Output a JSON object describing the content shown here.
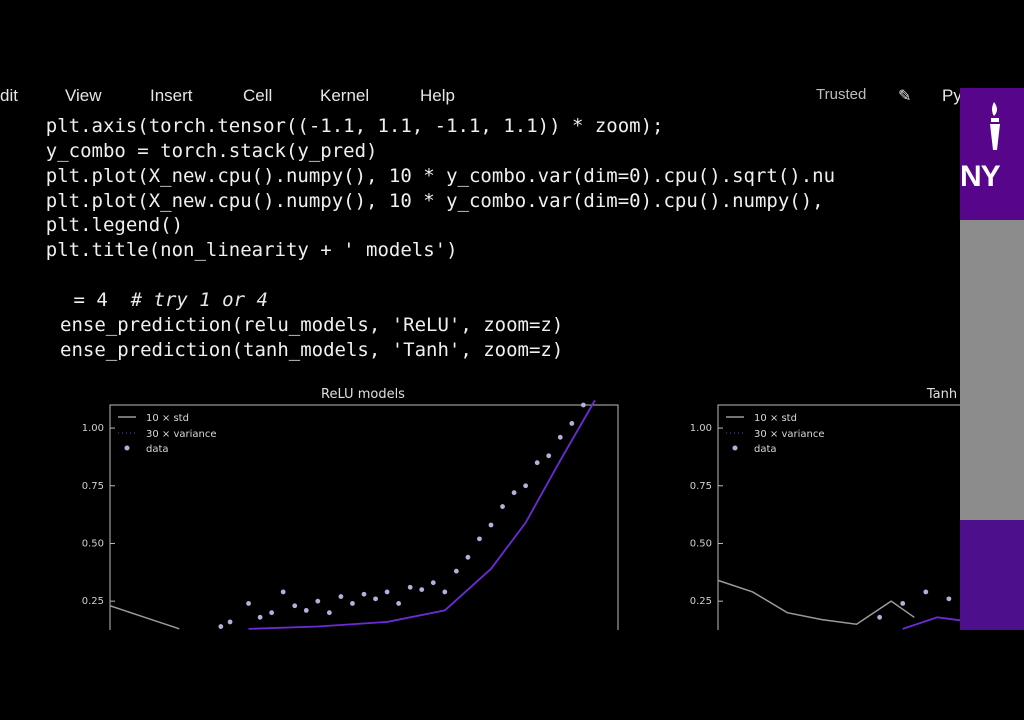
{
  "menubar": {
    "items": [
      "dit",
      "View",
      "Insert",
      "Cell",
      "Kernel",
      "Help"
    ],
    "trusted": "Trusted",
    "kernel_name": "Py"
  },
  "code": {
    "lines": [
      "    plt.axis(torch.tensor((-1.1, 1.1, -1.1, 1.1)) * zoom);",
      "    y_combo = torch.stack(y_pred)",
      "    plt.plot(X_new.cpu().numpy(), 10 * y_combo.var(dim=0).cpu().sqrt().nu",
      "    plt.plot(X_new.cpu().numpy(), 10 * y_combo.var(dim=0).cpu().numpy(),",
      "    plt.legend()",
      "    plt.title(non_linearity + ' models')",
      "",
      " = 4  ",
      "ense_prediction(relu_models, 'ReLU', zoom=z)",
      "ense_prediction(tanh_models, 'Tanh', zoom=z)"
    ],
    "comment": "# try 1 or 4"
  },
  "chart_data": [
    {
      "type": "line",
      "title": "ReLU models",
      "xlabel": "",
      "ylabel": "",
      "ylim": [
        0.2,
        1.1
      ],
      "yticks": [
        "0.25",
        "0.50",
        "0.75",
        "1.00"
      ],
      "legend": [
        "10 × std",
        "30 × variance",
        "data"
      ],
      "legend_position": "top-left",
      "series": [
        {
          "name": "10 × std",
          "color": "#9a9a9a",
          "x": [
            -1.1,
            -0.95,
            -0.8
          ],
          "y": [
            0.23,
            0.18,
            0.13
          ]
        },
        {
          "name": "30 × variance",
          "color": "#6c2bd9",
          "x": [
            -0.5,
            -0.2,
            0.1,
            0.35,
            0.55,
            0.7,
            0.85,
            1.0
          ],
          "y": [
            0.13,
            0.14,
            0.16,
            0.21,
            0.39,
            0.59,
            0.86,
            1.12
          ]
        },
        {
          "name": "data",
          "color": "#b9aedb",
          "x": [
            -0.62,
            -0.58,
            -0.5,
            -0.45,
            -0.4,
            -0.35,
            -0.3,
            -0.25,
            -0.2,
            -0.15,
            -0.1,
            -0.05,
            0.0,
            0.05,
            0.1,
            0.15,
            0.2,
            0.25,
            0.3,
            0.35,
            0.4,
            0.45,
            0.5,
            0.55,
            0.6,
            0.65,
            0.7,
            0.75,
            0.8,
            0.85,
            0.9,
            0.95
          ],
          "y": [
            0.14,
            0.16,
            0.24,
            0.18,
            0.2,
            0.29,
            0.23,
            0.21,
            0.25,
            0.2,
            0.27,
            0.24,
            0.28,
            0.26,
            0.29,
            0.24,
            0.31,
            0.3,
            0.33,
            0.29,
            0.38,
            0.44,
            0.52,
            0.58,
            0.66,
            0.72,
            0.75,
            0.85,
            0.88,
            0.96,
            1.02,
            1.1
          ]
        }
      ]
    },
    {
      "type": "line",
      "title": "Tanh",
      "xlabel": "",
      "ylabel": "",
      "ylim": [
        0.2,
        1.1
      ],
      "yticks": [
        "0.25",
        "0.50",
        "0.75",
        "1.00"
      ],
      "legend": [
        "10 × std",
        "30 × variance",
        "data"
      ],
      "legend_position": "top-left",
      "series": [
        {
          "name": "10 × std",
          "color": "#9a9a9a",
          "x": [
            -1.1,
            -0.95,
            -0.8,
            -0.65,
            -0.5,
            -0.35,
            -0.25
          ],
          "y": [
            0.34,
            0.29,
            0.2,
            0.17,
            0.15,
            0.25,
            0.18
          ]
        },
        {
          "name": "30 × variance",
          "color": "#6c2bd9",
          "x": [
            -0.3,
            -0.15,
            0.0
          ],
          "y": [
            0.13,
            0.18,
            0.16
          ]
        },
        {
          "name": "data",
          "color": "#b9aedb",
          "x": [
            -0.4,
            -0.3,
            -0.2,
            -0.1,
            0.0
          ],
          "y": [
            0.18,
            0.24,
            0.29,
            0.26,
            0.22
          ]
        }
      ]
    }
  ]
}
